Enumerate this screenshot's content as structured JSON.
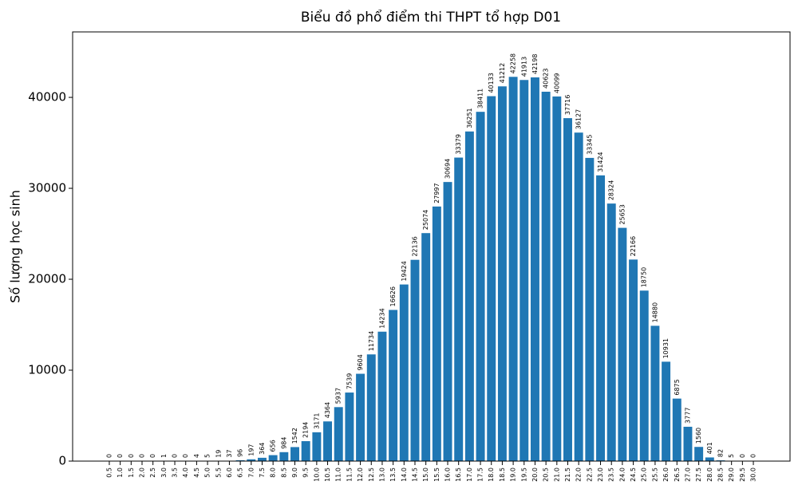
{
  "chart_data": {
    "type": "bar",
    "title": "Biểu đồ phổ điểm thi THPT tổ hợp D01",
    "y_label": "Số lượng học sinh",
    "categories": [
      "0.5",
      "1.0",
      "1.5",
      "2.0",
      "2.5",
      "3.0",
      "3.5",
      "4.0",
      "4.5",
      "5.0",
      "5.5",
      "6.0",
      "6.5",
      "7.0",
      "7.5",
      "8.0",
      "8.5",
      "9.0",
      "9.5",
      "10.0",
      "10.5",
      "11.0",
      "11.5",
      "12.0",
      "12.5",
      "13.0",
      "13.5",
      "14.0",
      "14.5",
      "15.0",
      "15.5",
      "16.0",
      "16.5",
      "17.0",
      "17.5",
      "18.0",
      "18.5",
      "19.0",
      "19.5",
      "20.0",
      "20.5",
      "21.0",
      "21.5",
      "22.0",
      "22.5",
      "23.0",
      "23.5",
      "24.0",
      "24.5",
      "25.0",
      "25.5",
      "26.0",
      "26.5",
      "27.0",
      "27.5",
      "28.0",
      "28.5",
      "29.0",
      "29.5",
      "30.0"
    ],
    "values": [
      0,
      0,
      0,
      0,
      0,
      1,
      0,
      0,
      4,
      5,
      19,
      37,
      96,
      197,
      364,
      656,
      984,
      1542,
      2194,
      3171,
      4364,
      5937,
      7539,
      9604,
      11734,
      14234,
      16626,
      19424,
      22136,
      25074,
      27997,
      30694,
      33379,
      36251,
      38411,
      40133,
      41212,
      42258,
      41913,
      42198,
      40623,
      40099,
      37716,
      36127,
      33345,
      31424,
      28324,
      25653,
      22166,
      18750,
      14880,
      10931,
      6875,
      3777,
      1560,
      401,
      82,
      5,
      0,
      0
    ],
    "color": "#1f77b4",
    "ylim": [
      0,
      47200
    ],
    "yticks": [
      0,
      10000,
      20000,
      30000,
      40000
    ]
  }
}
